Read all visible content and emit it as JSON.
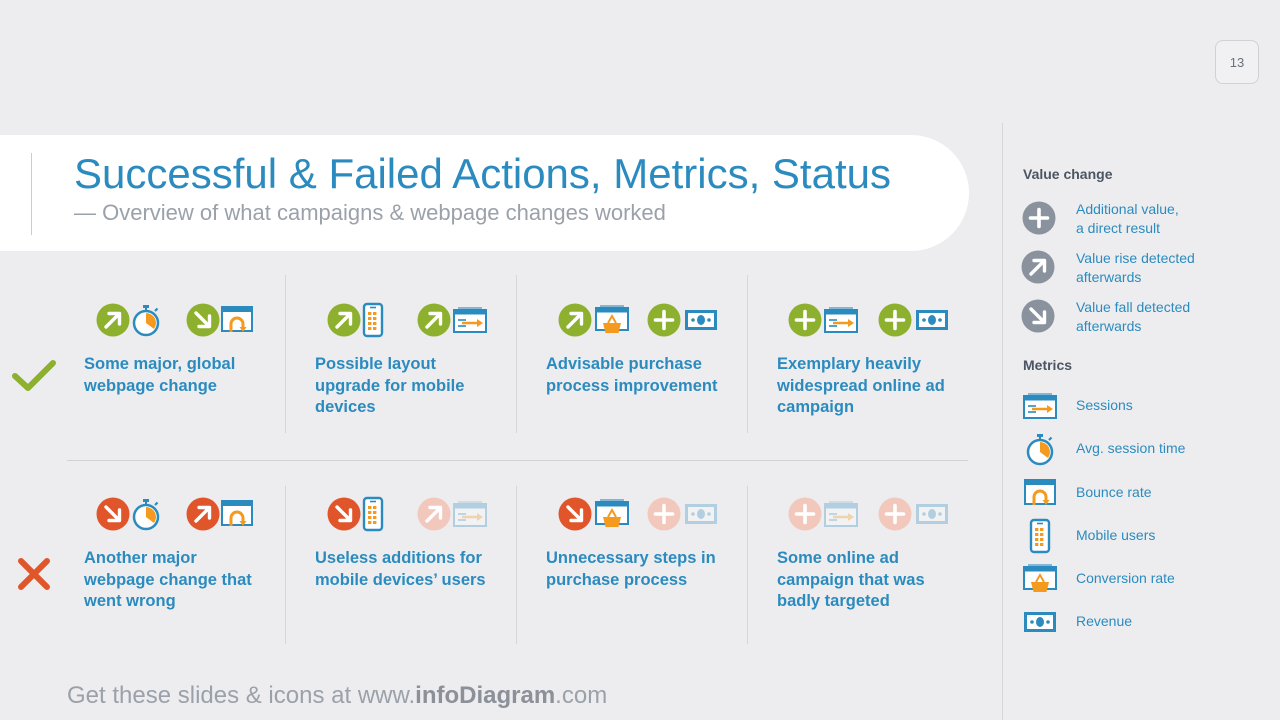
{
  "page_number": "13",
  "title": "Successful & Failed Actions, Metrics, Status",
  "subtitle": "— Overview of what campaigns & webpage changes worked",
  "success_rows": [
    {
      "label": "Some major, global webpage change"
    },
    {
      "label": "Possible layout upgrade for mobile devices"
    },
    {
      "label": "Advisable purchase process improvement"
    },
    {
      "label": "Exemplary heavily widespread online ad campaign"
    }
  ],
  "fail_rows": [
    {
      "label": "Another major webpage change that went wrong"
    },
    {
      "label": "Useless additions for mobile devices’ users"
    },
    {
      "label": "Unnecessary steps in purchase process"
    },
    {
      "label": "Some online ad campaign that was badly targeted"
    }
  ],
  "legend": {
    "value_change_heading": "Value change",
    "value_change": [
      {
        "icon": "plus-icon",
        "label": "Additional value,\na direct result"
      },
      {
        "icon": "arrow-up-right-icon",
        "label": "Value rise detected\nafterwards"
      },
      {
        "icon": "arrow-down-right-icon",
        "label": "Value fall detected\nafterwards"
      }
    ],
    "metrics_heading": "Metrics",
    "metrics": [
      {
        "icon": "sessions-icon",
        "label": "Sessions"
      },
      {
        "icon": "stopwatch-icon",
        "label": "Avg. session time"
      },
      {
        "icon": "bounce-rate-icon",
        "label": "Bounce rate"
      },
      {
        "icon": "mobile-phone-icon",
        "label": "Mobile users"
      },
      {
        "icon": "conversion-basket-icon",
        "label": "Conversion rate"
      },
      {
        "icon": "banknote-icon",
        "label": "Revenue"
      }
    ]
  },
  "footer": {
    "prefix": "Get these slides & icons at www.",
    "brand": "infoDiagram",
    "suffix": ".com"
  },
  "colors": {
    "accent_blue": "#2b8bbf",
    "success_green": "#8db02e",
    "fail_red": "#e0552a",
    "faded_red": "#f2c8bd",
    "neutral_gray": "#8a929e",
    "metric_orange": "#f39a1f"
  }
}
